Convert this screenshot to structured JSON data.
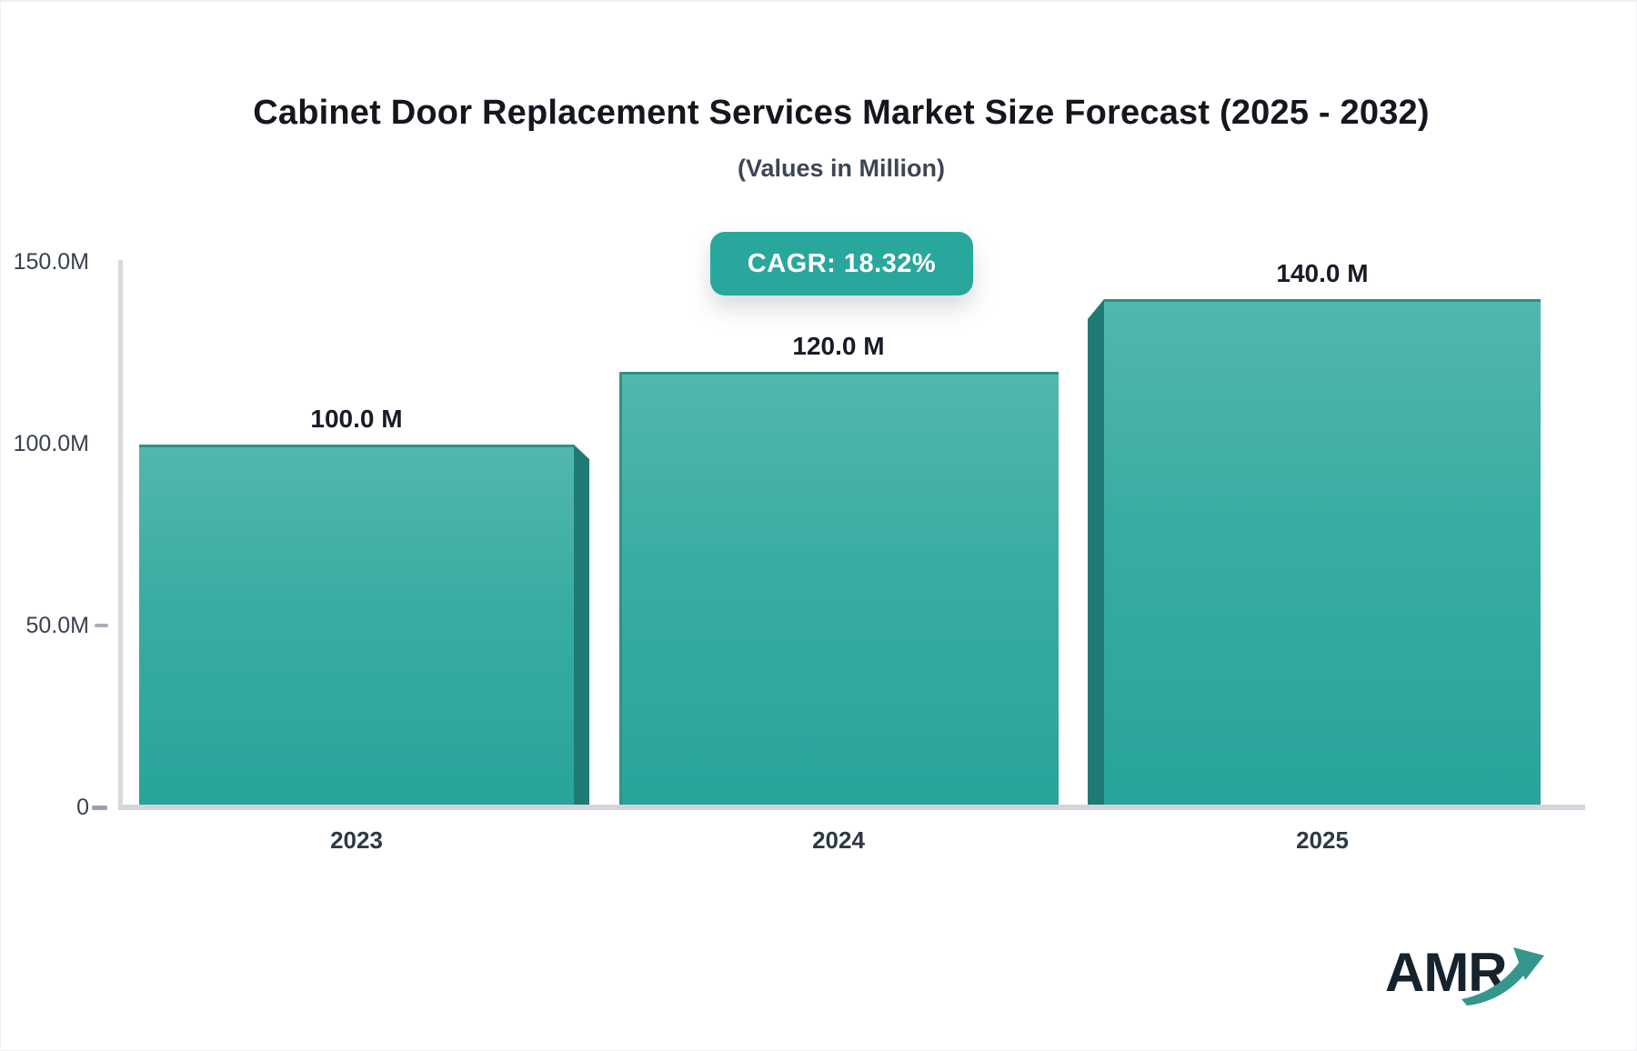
{
  "header": {
    "title": "Cabinet Door Replacement Services Market Size Forecast (2025 - 2032)",
    "subtitle": "(Values in Million)"
  },
  "badge": {
    "cagr_label": "CAGR: 18.32%"
  },
  "chart_data": {
    "type": "bar",
    "categories": [
      "2023",
      "2024",
      "2025"
    ],
    "values": [
      100.0,
      120.0,
      140.0
    ],
    "value_labels": [
      "100.0 M",
      "120.0 M",
      "140.0 M"
    ],
    "series_name": "Market Size",
    "unit": "Million",
    "title": "Cabinet Door Replacement Services Market Size Forecast (2025 - 2032)",
    "xlabel": "",
    "ylabel": "",
    "ylim": [
      0,
      150
    ],
    "ytick_interval": 50,
    "yticks": [
      "150.0M",
      "100.0M",
      "50.0M",
      "0"
    ],
    "grid": "off",
    "legend": "none",
    "bar_style": "3d-gradient",
    "cagr_percent": 18.32
  },
  "colors": {
    "bar_gradient_top": "#52b7ad",
    "bar_gradient_bottom": "#28a49a",
    "bar_side_3d": "#1f7b74",
    "bar_top_border": "#2b9187",
    "badge_background": "#2aa79c",
    "badge_text": "#ffffff",
    "axis_line": "#d7d9de",
    "title_text": "#14171e",
    "logo_navy": "#16222c",
    "logo_teal": "#35968c"
  },
  "logo": {
    "text": "AMR",
    "arrow_icon": "growth-arrow-icon"
  }
}
